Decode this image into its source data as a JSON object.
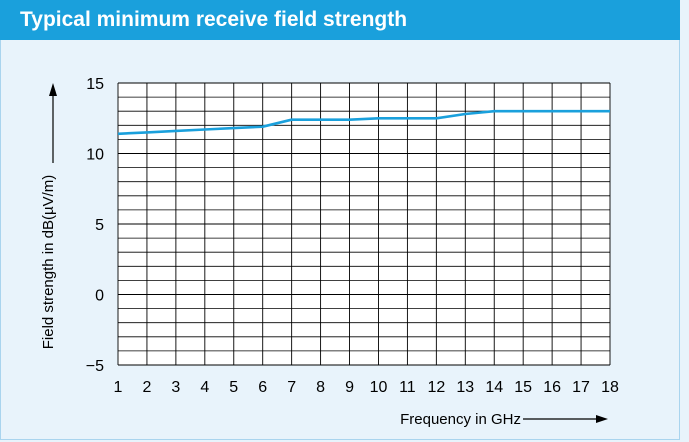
{
  "title": "Typical minimum receive field strength",
  "colors": {
    "title_bar": "#1aa0dc",
    "panel_bg": "#e8f3fb",
    "line": "#1aa0dc",
    "grid": "#000000"
  },
  "chart_data": {
    "type": "line",
    "title": "Typical minimum receive field strength",
    "xlabel": "Frequency in GHz",
    "ylabel": "Field strength in dB(µV/m)",
    "xlim": [
      1,
      18
    ],
    "ylim": [
      -5,
      15
    ],
    "x_ticks": [
      "1",
      "2",
      "3",
      "4",
      "5",
      "6",
      "7",
      "8",
      "9",
      "10",
      "11",
      "12",
      "13",
      "14",
      "15",
      "16",
      "17",
      "18"
    ],
    "y_ticks": [
      "−5",
      "0",
      "5",
      "10",
      "15"
    ],
    "y_tick_values": [
      -5,
      0,
      5,
      10,
      15
    ],
    "grid": true,
    "series": [
      {
        "x": [
          1,
          2,
          3,
          4,
          5,
          6,
          7,
          8,
          9,
          10,
          11,
          12,
          13,
          14,
          15,
          16,
          17,
          18
        ],
        "y": [
          11.4,
          11.5,
          11.6,
          11.7,
          11.8,
          11.9,
          12.4,
          12.4,
          12.4,
          12.5,
          12.5,
          12.5,
          12.8,
          13.0,
          13.0,
          13.0,
          13.0,
          13.0
        ]
      }
    ]
  }
}
